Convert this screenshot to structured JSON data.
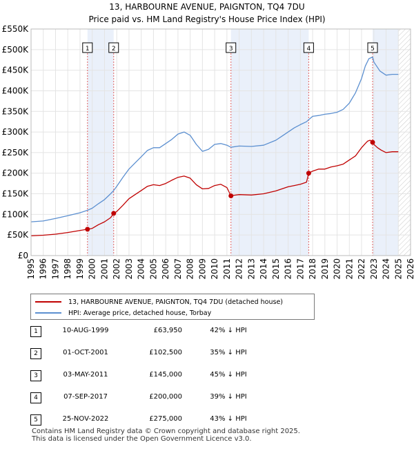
{
  "chart_data": {
    "type": "line",
    "title": "13, HARBOURNE AVENUE, PAIGNTON, TQ4 7DU",
    "subtitle": "Price paid vs. HM Land Registry's House Price Index (HPI)",
    "xlim": [
      1995,
      2026
    ],
    "ylim": [
      0,
      550000
    ],
    "yticks": [
      0,
      50000,
      100000,
      150000,
      200000,
      250000,
      300000,
      350000,
      400000,
      450000,
      500000,
      550000
    ],
    "ytick_labels": [
      "£0",
      "£50K",
      "£100K",
      "£150K",
      "£200K",
      "£250K",
      "£300K",
      "£350K",
      "£400K",
      "£450K",
      "£500K",
      "£550K"
    ],
    "xtick_labels": [
      "1995",
      "1996",
      "1997",
      "1998",
      "1999",
      "2000",
      "2001",
      "2002",
      "2003",
      "2004",
      "2005",
      "2006",
      "2007",
      "2008",
      "2009",
      "2010",
      "2011",
      "2012",
      "2013",
      "2014",
      "2015",
      "2016",
      "2017",
      "2018",
      "2019",
      "2020",
      "2021",
      "2022",
      "2023",
      "2024",
      "2025",
      "2026"
    ],
    "future_from": 2025.0,
    "shaded_spans": [
      [
        1999.61,
        2001.75
      ],
      [
        2011.33,
        2017.68
      ],
      [
        2022.9,
        2025.0
      ]
    ],
    "series": [
      {
        "name": "13, HARBOURNE AVENUE, PAIGNTON, TQ4 7DU (detached house)",
        "color": "#c00000",
        "x": [
          1995,
          1996,
          1997,
          1998,
          1999,
          1999.61,
          2000,
          2000.5,
          2001,
          2001.5,
          2001.75,
          2002,
          2002.5,
          2003,
          2003.5,
          2004,
          2004.5,
          2005,
          2005.5,
          2006,
          2006.5,
          2007,
          2007.5,
          2008,
          2008.5,
          2009,
          2009.5,
          2010,
          2010.5,
          2011,
          2011.33,
          2011.5,
          2012,
          2013,
          2014,
          2015,
          2015.5,
          2016,
          2016.5,
          2017,
          2017.5,
          2017.68,
          2018,
          2018.5,
          2019,
          2019.5,
          2020,
          2020.5,
          2021,
          2021.5,
          2022,
          2022.3,
          2022.5,
          2022.7,
          2022.9,
          2023,
          2023.3,
          2023.6,
          2024,
          2024.5,
          2025
        ],
        "y": [
          48000,
          49500,
          52000,
          56000,
          61000,
          63950,
          66000,
          75000,
          82000,
          92000,
          102500,
          107000,
          122000,
          138000,
          148000,
          158000,
          168000,
          172000,
          170000,
          175000,
          183000,
          190000,
          193000,
          188000,
          172000,
          162000,
          163000,
          170000,
          173000,
          165000,
          145000,
          146000,
          148000,
          147000,
          150000,
          157000,
          162000,
          167000,
          170000,
          173000,
          178000,
          200000,
          205000,
          210000,
          210000,
          215000,
          218000,
          222000,
          232000,
          242000,
          262000,
          272000,
          278000,
          280000,
          275000,
          270000,
          262000,
          256000,
          250000,
          252000,
          252000
        ]
      },
      {
        "name": "HPI: Average price, detached house, Torbay",
        "color": "#5b8fd0",
        "x": [
          1995,
          1996,
          1997,
          1998,
          1999,
          1999.61,
          2000,
          2000.5,
          2001,
          2001.5,
          2001.75,
          2002,
          2002.5,
          2003,
          2003.5,
          2004,
          2004.5,
          2005,
          2005.5,
          2006,
          2006.5,
          2007,
          2007.5,
          2008,
          2008.5,
          2009,
          2009.5,
          2010,
          2010.5,
          2011,
          2011.33,
          2012,
          2013,
          2014,
          2015,
          2015.5,
          2016,
          2016.5,
          2017,
          2017.5,
          2017.68,
          2018,
          2018.5,
          2019,
          2019.5,
          2020,
          2020.5,
          2021,
          2021.5,
          2022,
          2022.3,
          2022.6,
          2022.9,
          2023,
          2023.5,
          2024,
          2024.5,
          2025
        ],
        "y": [
          82000,
          84000,
          90000,
          97000,
          104000,
          110000,
          115000,
          126000,
          136000,
          150000,
          158000,
          168000,
          190000,
          210000,
          225000,
          240000,
          255000,
          262000,
          262000,
          272000,
          282000,
          295000,
          300000,
          292000,
          270000,
          253000,
          258000,
          270000,
          272000,
          268000,
          263000,
          266000,
          265000,
          268000,
          280000,
          290000,
          300000,
          310000,
          318000,
          325000,
          330000,
          338000,
          340000,
          343000,
          345000,
          348000,
          355000,
          370000,
          395000,
          430000,
          460000,
          478000,
          482000,
          470000,
          448000,
          438000,
          440000,
          440000
        ]
      }
    ],
    "markers": [
      {
        "label": "1",
        "x": 1999.61,
        "y": 63950
      },
      {
        "label": "2",
        "x": 2001.75,
        "y": 102500
      },
      {
        "label": "3",
        "x": 2011.33,
        "y": 145000
      },
      {
        "label": "4",
        "x": 2017.68,
        "y": 200000
      },
      {
        "label": "5",
        "x": 2022.9,
        "y": 275000
      }
    ]
  },
  "legend": {
    "property_label": "13, HARBOURNE AVENUE, PAIGNTON, TQ4 7DU (detached house)",
    "hpi_label": "HPI: Average price, detached house, Torbay",
    "property_color": "#c00000",
    "hpi_color": "#5b8fd0"
  },
  "sales": [
    {
      "num": "1",
      "date": "10-AUG-1999",
      "price": "£63,950",
      "hpi": "42% ↓ HPI"
    },
    {
      "num": "2",
      "date": "01-OCT-2001",
      "price": "£102,500",
      "hpi": "35% ↓ HPI"
    },
    {
      "num": "3",
      "date": "03-MAY-2011",
      "price": "£145,000",
      "hpi": "45% ↓ HPI"
    },
    {
      "num": "4",
      "date": "07-SEP-2017",
      "price": "£200,000",
      "hpi": "39% ↓ HPI"
    },
    {
      "num": "5",
      "date": "25-NOV-2022",
      "price": "£275,000",
      "hpi": "43% ↓ HPI"
    }
  ],
  "footer": {
    "line1": "Contains HM Land Registry data © Crown copyright and database right 2025.",
    "line2": "This data is licensed under the Open Government Licence v3.0."
  }
}
